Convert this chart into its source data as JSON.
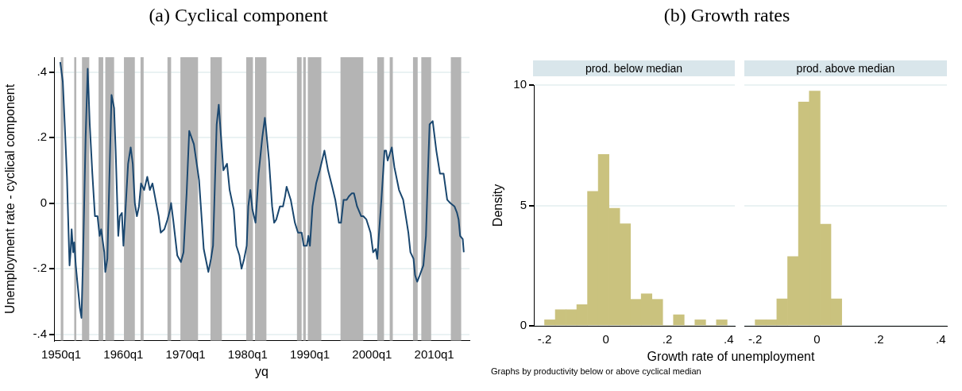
{
  "chart_data": [
    {
      "type": "line",
      "title": "(a) Cyclical component",
      "xlabel": "yq",
      "ylabel": "Unemployment rate - cyclical component",
      "color": "#1a476f",
      "grid": "y",
      "x": [
        "1949-11",
        "1950-04",
        "1950-08",
        "1950-12",
        "1951-04",
        "1951-05",
        "1951-07",
        "1951-09",
        "1951-12",
        "1952-02",
        "1952-05",
        "1952-08",
        "1953-01",
        "1953-04",
        "1953-07",
        "1953-12",
        "1954-04",
        "1954-08",
        "1955-01",
        "1955-06",
        "1955-11",
        "1956-03",
        "1956-06",
        "1956-12",
        "1957-02",
        "1957-06",
        "1957-10",
        "1958-02",
        "1958-07",
        "1958-10",
        "1959-03",
        "1959-06",
        "1959-10",
        "1960-01",
        "1960-05",
        "1960-10",
        "1961-03",
        "1961-07",
        "1961-11",
        "1962-03",
        "1962-07",
        "1962-11",
        "1963-05",
        "1963-11",
        "1964-04",
        "1964-09",
        "1965-03",
        "1965-09",
        "1966-01",
        "1966-08",
        "1967-02",
        "1967-07",
        "1967-09",
        "1968-01",
        "1968-09",
        "1969-04",
        "1969-09",
        "1970-03",
        "1970-08",
        "1971-05",
        "1972-03",
        "1972-12",
        "1973-09",
        "1974-02",
        "1974-06",
        "1975-01",
        "1975-05",
        "1975-09",
        "1976-02",
        "1976-09",
        "1977-02",
        "1977-10",
        "1978-03",
        "1978-09",
        "1979-01",
        "1979-06",
        "1979-11",
        "1980-02",
        "1980-06",
        "1980-10",
        "1981-04",
        "1981-10",
        "1982-05",
        "1982-10",
        "1982-12",
        "1983-06",
        "1983-12",
        "1984-04",
        "1984-08",
        "1985-03",
        "1985-09",
        "1986-01",
        "1986-04",
        "1986-12",
        "1987-08",
        "1988-02",
        "1988-09",
        "1989-01",
        "1989-07",
        "1989-10",
        "1990-01",
        "1990-06",
        "1991-01",
        "1991-08",
        "1992-05",
        "1992-12",
        "1993-08",
        "1994-02",
        "1994-09",
        "1995-01",
        "1995-06",
        "1995-12",
        "1996-04",
        "1996-10",
        "1997-02",
        "1997-08",
        "1998-04",
        "1998-08",
        "1999-02",
        "1999-10",
        "2000-03",
        "2000-08",
        "2000-11",
        "2001-02",
        "2001-07",
        "2002-01",
        "2002-04",
        "2002-07",
        "2002-11",
        "2003-03",
        "2003-08",
        "2004-05",
        "2005-01",
        "2005-07",
        "2005-11",
        "2006-03",
        "2006-09",
        "2006-12",
        "2007-04",
        "2007-09",
        "2008-04",
        "2008-09",
        "2009-01",
        "2009-04",
        "2009-10",
        "2010-05",
        "2010-12",
        "2011-07",
        "2012-02",
        "2012-08",
        "2013-04",
        "2013-09",
        "2013-12",
        "2014-03",
        "2014-08",
        "2014-10"
      ],
      "values": [
        0.43,
        0.37,
        0.23,
        0.08,
        -0.14,
        -0.19,
        -0.15,
        -0.08,
        -0.15,
        -0.12,
        -0.19,
        -0.24,
        -0.32,
        -0.35,
        -0.17,
        0.2,
        0.41,
        0.24,
        0.09,
        -0.04,
        -0.04,
        -0.1,
        -0.08,
        -0.15,
        -0.21,
        -0.17,
        0.08,
        0.33,
        0.29,
        0.16,
        -0.1,
        -0.04,
        -0.03,
        -0.13,
        -0.02,
        0.12,
        0.17,
        0.12,
        0.0,
        -0.04,
        -0.01,
        0.06,
        0.04,
        0.08,
        0.04,
        0.06,
        0.01,
        -0.04,
        -0.09,
        -0.08,
        -0.05,
        -0.02,
        0.0,
        -0.05,
        -0.16,
        -0.18,
        -0.15,
        0.03,
        0.22,
        0.18,
        0.07,
        -0.14,
        -0.21,
        -0.17,
        -0.13,
        0.24,
        0.3,
        0.21,
        0.1,
        0.12,
        0.04,
        -0.02,
        -0.13,
        -0.16,
        -0.2,
        -0.17,
        -0.13,
        -0.01,
        0.04,
        -0.02,
        -0.06,
        0.09,
        0.2,
        0.26,
        0.23,
        0.13,
        -0.01,
        -0.06,
        -0.05,
        -0.01,
        -0.01,
        0.02,
        0.05,
        0.01,
        -0.06,
        -0.09,
        -0.09,
        -0.13,
        -0.13,
        -0.1,
        -0.13,
        -0.01,
        0.06,
        0.1,
        0.16,
        0.1,
        0.05,
        0.01,
        -0.06,
        -0.06,
        0.01,
        0.01,
        0.02,
        0.03,
        0.03,
        -0.01,
        -0.04,
        -0.04,
        -0.05,
        -0.09,
        -0.15,
        -0.14,
        -0.17,
        -0.1,
        0.01,
        0.16,
        0.16,
        0.13,
        0.15,
        0.17,
        0.11,
        0.04,
        0.01,
        -0.05,
        -0.09,
        -0.15,
        -0.17,
        -0.22,
        -0.24,
        -0.22,
        -0.19,
        -0.1,
        0.1,
        0.24,
        0.25,
        0.16,
        0.09,
        0.09,
        0.01,
        0.0,
        -0.01,
        -0.03,
        -0.05,
        -0.1,
        -0.11,
        -0.15
      ],
      "xlim": [
        "1948-11",
        "2015-09"
      ],
      "ylim": [
        -0.42,
        0.445
      ],
      "xticks": [
        {
          "value": "1950-01",
          "label": "1950q1"
        },
        {
          "value": "1960-01",
          "label": "1960q1"
        },
        {
          "value": "1970-01",
          "label": "1970q1"
        },
        {
          "value": "1980-01",
          "label": "1980q1"
        },
        {
          "value": "1990-01",
          "label": "1990q1"
        },
        {
          "value": "2000-01",
          "label": "2000q1"
        },
        {
          "value": "2010-01",
          "label": "2010q1"
        }
      ],
      "yticks": [
        {
          "value": -0.4,
          "label": "-.4"
        },
        {
          "value": -0.2,
          "label": "-.2"
        },
        0,
        {
          "value": 0.2,
          "label": ".2"
        },
        {
          "value": 0.4,
          "label": ".4"
        }
      ],
      "bands": [
        {
          "axis": "x",
          "from": "1949-12",
          "to": "1950-05",
          "color": "#b4b4b4"
        },
        {
          "axis": "x",
          "from": "1952-02",
          "to": "1952-06",
          "color": "#b4b4b4"
        },
        {
          "axis": "x",
          "from": "1953-05",
          "to": "1954-07",
          "color": "#b4b4b4"
        },
        {
          "axis": "x",
          "from": "1956-01",
          "to": "1956-10",
          "color": "#b4b4b4"
        },
        {
          "axis": "x",
          "from": "1957-02",
          "to": "1958-07",
          "color": "#b4b4b4"
        },
        {
          "axis": "x",
          "from": "1960-02",
          "to": "1961-11",
          "color": "#b4b4b4"
        },
        {
          "axis": "x",
          "from": "1962-10",
          "to": "1963-04",
          "color": "#b4b4b4"
        },
        {
          "axis": "x",
          "from": "1967-02",
          "to": "1967-09",
          "color": "#b4b4b4"
        },
        {
          "axis": "x",
          "from": "1969-03",
          "to": "1972-01",
          "color": "#b4b4b4"
        },
        {
          "axis": "x",
          "from": "1974-01",
          "to": "1975-11",
          "color": "#b4b4b4"
        },
        {
          "axis": "x",
          "from": "1979-10",
          "to": "1980-11",
          "color": "#b4b4b4"
        },
        {
          "axis": "x",
          "from": "1981-03",
          "to": "1983-01",
          "color": "#b4b4b4"
        },
        {
          "axis": "x",
          "from": "1987-12",
          "to": "1988-09",
          "color": "#b4b4b4"
        },
        {
          "axis": "x",
          "from": "1988-12",
          "to": "1989-05",
          "color": "#b4b4b4"
        },
        {
          "axis": "x",
          "from": "1989-09",
          "to": "1991-11",
          "color": "#b4b4b4"
        },
        {
          "axis": "x",
          "from": "1994-12",
          "to": "1998-08",
          "color": "#b4b4b4"
        },
        {
          "axis": "x",
          "from": "2000-11",
          "to": "2001-12",
          "color": "#b4b4b4"
        },
        {
          "axis": "x",
          "from": "2002-11",
          "to": "2003-05",
          "color": "#b4b4b4"
        },
        {
          "axis": "x",
          "from": "2006-08",
          "to": "2007-05",
          "color": "#b4b4b4"
        },
        {
          "axis": "x",
          "from": "2007-12",
          "to": "2009-07",
          "color": "#b4b4b4"
        },
        {
          "axis": "x",
          "from": "2012-09",
          "to": "2014-05",
          "color": "#b4b4b4"
        }
      ]
    },
    {
      "type": "histogram",
      "title": "(b) Growth rates",
      "subtitle": "prod. below median",
      "xlabel": "Growth rate of unemployment",
      "ylabel": "Density",
      "color": "#cac27e",
      "grid": "y",
      "annotations": [
        "Graphs by productivity below or above cyclical median"
      ],
      "bins": [
        -0.2,
        -0.165,
        -0.13,
        -0.095,
        -0.06,
        -0.025,
        0.01,
        0.045,
        0.08,
        0.115,
        0.15,
        0.185,
        0.22,
        0.255,
        0.29,
        0.325,
        0.36,
        0.395
      ],
      "values": [
        0.25,
        0.67,
        0.67,
        0.88,
        5.58,
        7.12,
        4.88,
        4.24,
        1.1,
        1.33,
        1.1,
        0,
        0.46,
        0,
        0.25,
        0,
        0.25
      ],
      "xlim": [
        -0.235,
        0.42
      ],
      "ylim": [
        0,
        10
      ],
      "xticks": [
        {
          "value": -0.2,
          "label": "-.2"
        },
        0,
        {
          "value": 0.2,
          "label": ".2"
        },
        {
          "value": 0.4,
          "label": ".4"
        }
      ],
      "yticks": [
        0,
        5,
        10
      ]
    },
    {
      "type": "histogram",
      "subtitle": "prod. above median",
      "color": "#cac27e",
      "grid": "y",
      "tick_labels": "x",
      "bins": [
        -0.2,
        -0.165,
        -0.13,
        -0.095,
        -0.06,
        -0.025,
        0.01,
        0.045,
        0.08
      ],
      "values": [
        0.25,
        0.25,
        1.12,
        2.88,
        9.3,
        9.75,
        4.22,
        1.12
      ],
      "xlim": [
        -0.235,
        0.42
      ],
      "ylim": [
        0,
        10
      ],
      "xticks": [
        {
          "value": -0.2,
          "label": "-.2"
        },
        0,
        {
          "value": 0.2,
          "label": ".2"
        },
        {
          "value": 0.4,
          "label": ".4"
        }
      ],
      "yticks": [
        0,
        5,
        10
      ]
    }
  ]
}
